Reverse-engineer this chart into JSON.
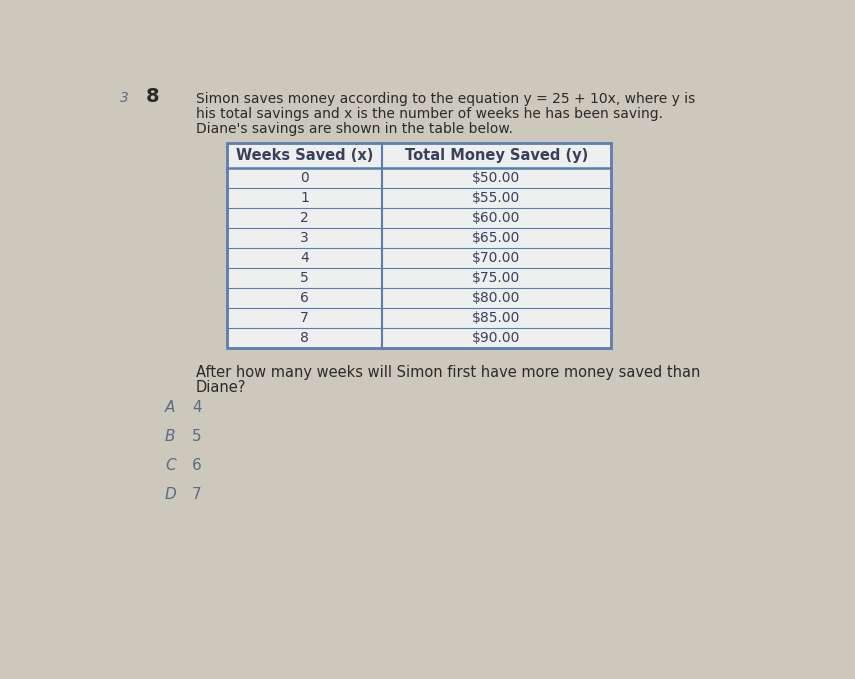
{
  "problem_number": "8",
  "circle_label": "3",
  "title_line1": "Simon saves money according to the equation y = 25 + 10x, where y is",
  "title_line2": "his total savings and x is the number of weeks he has been saving.",
  "title_line3": "Diane's savings are shown in the table below.",
  "col1_header": "Weeks Saved (x)",
  "col2_header": "Total Money Saved (y)",
  "weeks": [
    0,
    1,
    2,
    3,
    4,
    5,
    6,
    7,
    8
  ],
  "savings": [
    "$50.00",
    "$55.00",
    "$60.00",
    "$65.00",
    "$70.00",
    "$75.00",
    "$80.00",
    "$85.00",
    "$90.00"
  ],
  "question_line1": "After how many weeks will Simon first have more money saved than",
  "question_line2": "Diane?",
  "choice_letters": [
    "A",
    "B",
    "C",
    "D"
  ],
  "choice_values": [
    "4",
    "5",
    "6",
    "7"
  ],
  "bg_color": "#cdc8bc",
  "table_border_color": "#5a7db0",
  "table_bg_color": "#eef0f0",
  "table_header_bg": "#eef0f0",
  "table_line_color": "#5a7db0",
  "text_color": "#3a3f5c",
  "header_text_color": "#3a3f5c",
  "title_color": "#2a2a2a",
  "question_color": "#2a2a2a",
  "choice_letter_color": "#5a6a8a",
  "choice_value_color": "#5a6a8a",
  "circle_color": "#5a6a8a",
  "problem_num_color": "#2a2a2a",
  "font_size_title": 10.0,
  "font_size_table_header": 10.5,
  "font_size_table_data": 10.0,
  "font_size_question": 10.5,
  "font_size_choices": 11.0,
  "font_size_problem_num": 14
}
